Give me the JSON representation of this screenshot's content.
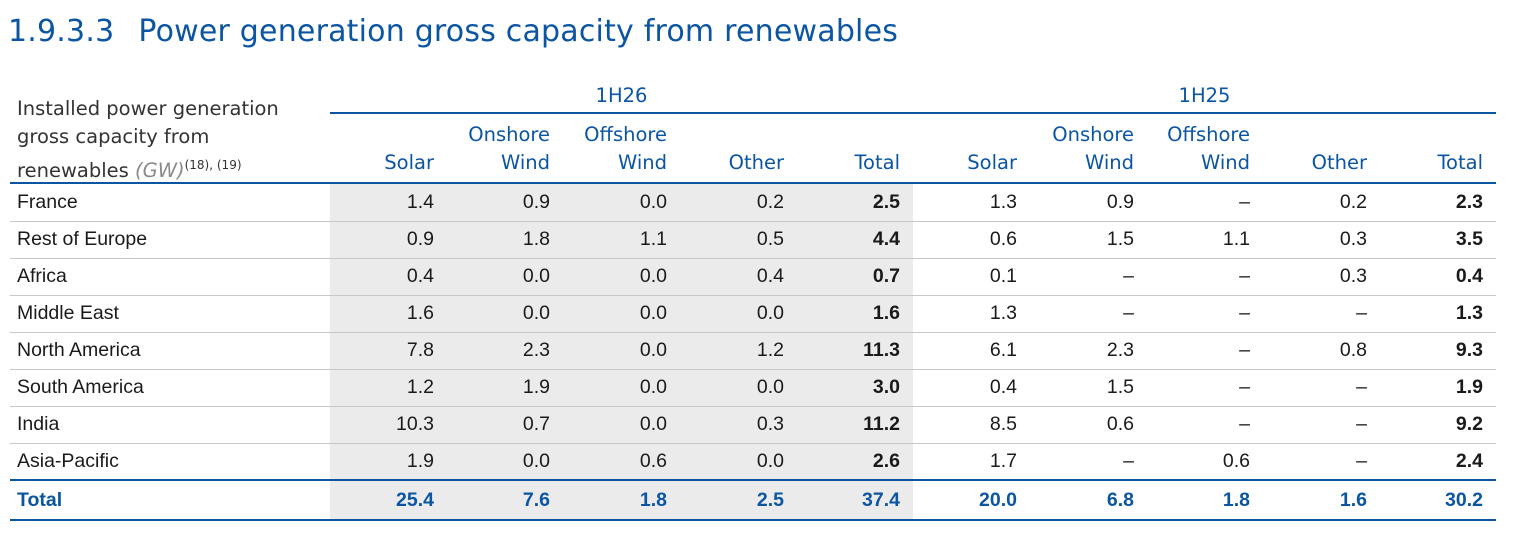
{
  "title": {
    "number": "1.9.3.3",
    "text": "Power generation gross capacity from renewables"
  },
  "header": {
    "label_line1": "Installed power generation",
    "label_line2": "gross capacity from",
    "label_line3": "renewables",
    "unit": "(GW)",
    "footnotes": "(18), (19)",
    "period_1": "1H26",
    "period_2": "1H25",
    "columns": [
      {
        "line1": "",
        "line2": "Solar"
      },
      {
        "line1": "Onshore",
        "line2": "Wind"
      },
      {
        "line1": "Offshore",
        "line2": "Wind"
      },
      {
        "line1": "",
        "line2": "Other"
      },
      {
        "line1": "",
        "line2": "Total"
      },
      {
        "line1": "",
        "line2": "Solar"
      },
      {
        "line1": "Onshore",
        "line2": "Wind"
      },
      {
        "line1": "Offshore",
        "line2": "Wind"
      },
      {
        "line1": "",
        "line2": "Other"
      },
      {
        "line1": "",
        "line2": "Total"
      }
    ]
  },
  "rows": [
    {
      "name": "France",
      "values": [
        "1.4",
        "0.9",
        "0.0",
        "0.2",
        "2.5",
        "1.3",
        "0.9",
        "–",
        "0.2",
        "2.3"
      ]
    },
    {
      "name": "Rest of Europe",
      "values": [
        "0.9",
        "1.8",
        "1.1",
        "0.5",
        "4.4",
        "0.6",
        "1.5",
        "1.1",
        "0.3",
        "3.5"
      ]
    },
    {
      "name": "Africa",
      "values": [
        "0.4",
        "0.0",
        "0.0",
        "0.4",
        "0.7",
        "0.1",
        "–",
        "–",
        "0.3",
        "0.4"
      ]
    },
    {
      "name": "Middle East",
      "values": [
        "1.6",
        "0.0",
        "0.0",
        "0.0",
        "1.6",
        "1.3",
        "–",
        "–",
        "–",
        "1.3"
      ]
    },
    {
      "name": "North America",
      "values": [
        "7.8",
        "2.3",
        "0.0",
        "1.2",
        "11.3",
        "6.1",
        "2.3",
        "–",
        "0.8",
        "9.3"
      ]
    },
    {
      "name": "South America",
      "values": [
        "1.2",
        "1.9",
        "0.0",
        "0.0",
        "3.0",
        "0.4",
        "1.5",
        "–",
        "–",
        "1.9"
      ]
    },
    {
      "name": "India",
      "values": [
        "10.3",
        "0.7",
        "0.0",
        "0.3",
        "11.2",
        "8.5",
        "0.6",
        "–",
        "–",
        "9.2"
      ]
    },
    {
      "name": "Asia-Pacific",
      "values": [
        "1.9",
        "0.0",
        "0.6",
        "0.0",
        "2.6",
        "1.7",
        "–",
        "0.6",
        "–",
        "2.4"
      ]
    }
  ],
  "total_row": {
    "name": "Total",
    "values": [
      "25.4",
      "7.6",
      "1.8",
      "2.5",
      "37.4",
      "20.0",
      "6.8",
      "1.8",
      "1.6",
      "30.2"
    ]
  },
  "colors": {
    "accent": "#0b55a3",
    "shade": "#ebebeb"
  }
}
